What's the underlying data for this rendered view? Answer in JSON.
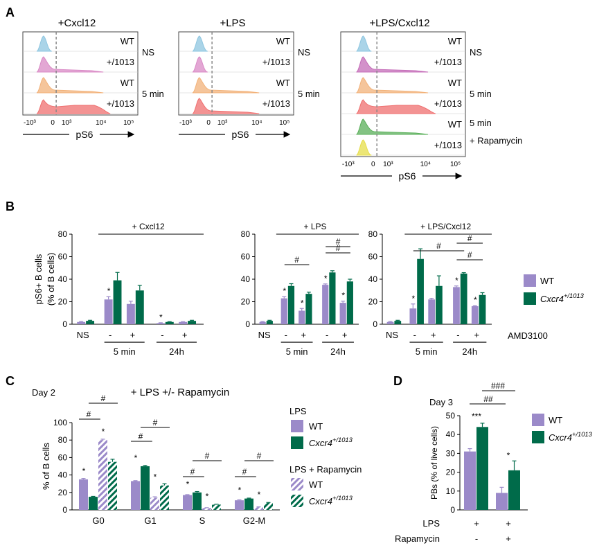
{
  "colors": {
    "wt": "#9b8ac9",
    "mut": "#006b4a",
    "axis": "#000000"
  },
  "panels": {
    "a": "A",
    "b": "B",
    "c": "C",
    "d": "D"
  },
  "panel_a": {
    "axis_label": "pS6",
    "ticks": [
      "-10³",
      "0",
      "10³",
      "10⁴",
      "10⁵"
    ],
    "histograms": [
      {
        "title": "+Cxcl12",
        "rows": [
          {
            "label": "WT",
            "color": "#8ec6e0",
            "shape": "narrow"
          },
          {
            "label": "+/1013",
            "color": "#d98ac6",
            "shape": "narrow_tail"
          },
          {
            "label": "WT",
            "color": "#f2b27a",
            "shape": "narrow_tail"
          },
          {
            "label": "+/1013",
            "color": "#ef6f6f",
            "shape": "broad"
          }
        ],
        "groups": [
          {
            "label": "NS"
          },
          {
            "label": "5 min"
          }
        ]
      },
      {
        "title": "+LPS",
        "rows": [
          {
            "label": "WT",
            "color": "#8ec6e0",
            "shape": "narrow"
          },
          {
            "label": "+/1013",
            "color": "#d98ac6",
            "shape": "narrow"
          },
          {
            "label": "WT",
            "color": "#f2b27a",
            "shape": "narrow_tail"
          },
          {
            "label": "+/1013",
            "color": "#ef6f6f",
            "shape": "narrow_tail"
          }
        ],
        "groups": [
          {
            "label": "NS"
          },
          {
            "label": "5 min"
          }
        ]
      },
      {
        "title": "+LPS/Cxcl12",
        "rows": [
          {
            "label": "WT",
            "color": "#8ec6e0",
            "shape": "narrow"
          },
          {
            "label": "+/1013",
            "color": "#c46cb8",
            "shape": "narrow_tail"
          },
          {
            "label": "WT",
            "color": "#f2b27a",
            "shape": "narrow_tail"
          },
          {
            "label": "+/1013",
            "color": "#ef6f6f",
            "shape": "broad"
          },
          {
            "label": "WT",
            "color": "#5aaf5a",
            "shape": "narrow_tail"
          },
          {
            "label": "+/1013",
            "color": "#e6dd4a",
            "shape": "narrow"
          }
        ],
        "groups": [
          {
            "label": "NS"
          },
          {
            "label": "5 min"
          },
          {
            "label": "5 min"
          },
          {
            "label": "+ Rapamycin"
          }
        ]
      }
    ]
  },
  "chart_data": [
    {
      "id": "B",
      "type": "bar",
      "ylabel": "pS6+ B cells\n(% of B cells)",
      "ylim": [
        0,
        80
      ],
      "yticks": [
        0,
        20,
        40,
        60,
        80
      ],
      "xgroups": [
        "NS",
        "-",
        "+",
        "-",
        "+"
      ],
      "time_labels": [
        "5 min",
        "24h"
      ],
      "treatment_row_label": "AMD3100",
      "legend": [
        "WT",
        "Cxcr4+/1013"
      ],
      "subpanels": [
        {
          "title": "+ Cxcl12",
          "series": [
            {
              "values": [
                2,
                22,
                18,
                1,
                2
              ],
              "errors": [
                0.5,
                2.5,
                2.5,
                0.3,
                0.3
              ]
            },
            {
              "values": [
                3,
                39,
                30,
                2,
                3
              ],
              "errors": [
                0.5,
                7,
                4.5,
                0.3,
                0.5
              ]
            }
          ],
          "star": [
            "",
            "*",
            "",
            "*",
            ""
          ],
          "hash": []
        },
        {
          "title": "+ LPS",
          "series": [
            {
              "values": [
                2,
                23,
                12,
                35,
                19
              ],
              "errors": [
                0.5,
                1.5,
                2,
                0.8,
                1.5
              ]
            },
            {
              "values": [
                3,
                34,
                27,
                46,
                38
              ],
              "errors": [
                0.5,
                2,
                1.5,
                1.5,
                2
              ]
            }
          ],
          "star": [
            "",
            "*",
            "*",
            "*",
            "*"
          ],
          "hash": [
            "#",
            "#",
            "#"
          ]
        },
        {
          "title": "+ LPS/Cxcl12",
          "series": [
            {
              "values": [
                2,
                14,
                22,
                33,
                16
              ],
              "errors": [
                0.5,
                4,
                1,
                1,
                0.5
              ]
            },
            {
              "values": [
                3,
                58,
                34,
                45,
                26
              ],
              "errors": [
                0.5,
                9,
                9,
                0.8,
                2
              ]
            }
          ],
          "star": [
            "",
            "*",
            "",
            "*",
            "*"
          ],
          "hash": [
            "#",
            "#",
            "#"
          ]
        }
      ]
    },
    {
      "id": "C",
      "type": "bar",
      "title": "+ LPS +/- Rapamycin",
      "day_label": "Day 2",
      "ylabel": "% of B cells",
      "ylim": [
        0,
        100
      ],
      "yticks": [
        0,
        20,
        40,
        60,
        80,
        100
      ],
      "categories": [
        "G0",
        "G1",
        "S",
        "G2-M"
      ],
      "series": [
        {
          "group": "LPS",
          "name": "WT",
          "values": [
            35,
            33,
            17,
            11
          ],
          "errors": [
            1,
            0.5,
            0.5,
            0.5
          ]
        },
        {
          "group": "LPS",
          "name": "Cxcr4+/1013",
          "values": [
            15,
            50,
            20,
            13
          ],
          "errors": [
            0.5,
            1,
            1,
            0.5
          ]
        },
        {
          "group": "LPS + Rapamycin",
          "name": "WT",
          "values": [
            80,
            14,
            2,
            3
          ],
          "errors": [
            1,
            1,
            0.5,
            0.5
          ]
        },
        {
          "group": "LPS + Rapamycin",
          "name": "Cxcr4+/1013",
          "values": [
            55,
            28,
            6,
            8
          ],
          "errors": [
            3,
            2,
            0.5,
            0.5
          ]
        }
      ],
      "legend_groups": [
        "LPS",
        "LPS + Rapamycin"
      ]
    },
    {
      "id": "D",
      "type": "bar",
      "day_label": "Day 3",
      "ylabel": "PBs (% of live cells)",
      "ylim": [
        0,
        50
      ],
      "yticks": [
        0,
        10,
        20,
        30,
        40,
        50
      ],
      "row_labels": [
        "LPS",
        "Rapamycin"
      ],
      "row_values": [
        [
          "+",
          "+"
        ],
        [
          "-",
          "+"
        ]
      ],
      "series": [
        {
          "name": "WT",
          "values": [
            31,
            9
          ],
          "errors": [
            1.5,
            3
          ]
        },
        {
          "name": "Cxcr4+/1013",
          "values": [
            44,
            21
          ],
          "errors": [
            2,
            5
          ]
        }
      ],
      "legend": [
        "WT",
        "Cxcr4+/1013"
      ]
    }
  ]
}
